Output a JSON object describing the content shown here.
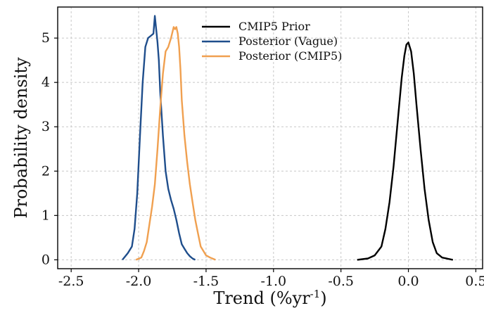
{
  "chart_data": {
    "type": "line",
    "xlabel": "Trend  (%yr",
    "xlabel_sup": "-1",
    "xlabel_close": ")",
    "ylabel": "Probability density",
    "xlim": [
      -2.6,
      0.55
    ],
    "ylim": [
      -0.2,
      5.7
    ],
    "xticks": [
      -2.5,
      -2.0,
      -1.5,
      -1.0,
      -0.5,
      0.0,
      0.5
    ],
    "xtick_labels": [
      "-2.5",
      "-2.0",
      "-1.5",
      "-1.0",
      "-0.5",
      "0.0",
      "0.5"
    ],
    "yticks": [
      0,
      1,
      2,
      3,
      4,
      5
    ],
    "ytick_labels": [
      "0",
      "1",
      "2",
      "3",
      "4",
      "5"
    ],
    "grid": true,
    "legend_position": "top-center",
    "series": [
      {
        "name": "CMIP5 Prior",
        "color": "#000000",
        "x": [
          -0.38,
          -0.3,
          -0.25,
          -0.2,
          -0.17,
          -0.14,
          -0.11,
          -0.08,
          -0.05,
          -0.03,
          -0.015,
          0.0,
          0.02,
          0.04,
          0.06,
          0.09,
          0.12,
          0.15,
          0.18,
          0.21,
          0.25,
          0.33
        ],
        "y": [
          0.0,
          0.03,
          0.1,
          0.3,
          0.7,
          1.3,
          2.1,
          3.1,
          4.1,
          4.6,
          4.85,
          4.9,
          4.7,
          4.2,
          3.5,
          2.5,
          1.6,
          0.9,
          0.4,
          0.15,
          0.05,
          0.0
        ]
      },
      {
        "name": "Posterior (Vague)",
        "color": "#1f4e8c",
        "x": [
          -2.12,
          -2.08,
          -2.05,
          -2.03,
          -2.01,
          -1.99,
          -1.97,
          -1.95,
          -1.93,
          -1.91,
          -1.89,
          -1.88,
          -1.87,
          -1.86,
          -1.85,
          -1.84,
          -1.82,
          -1.8,
          -1.78,
          -1.76,
          -1.74,
          -1.72,
          -1.7,
          -1.68,
          -1.66,
          -1.64,
          -1.62,
          -1.6,
          -1.58
        ],
        "y": [
          0.0,
          0.15,
          0.3,
          0.7,
          1.5,
          2.8,
          4.0,
          4.8,
          5.0,
          5.05,
          5.1,
          5.5,
          5.2,
          4.9,
          4.5,
          3.8,
          2.8,
          2.0,
          1.6,
          1.35,
          1.15,
          0.9,
          0.6,
          0.35,
          0.25,
          0.15,
          0.08,
          0.03,
          0.0
        ]
      },
      {
        "name": "Posterior (CMIP5)",
        "color": "#f0a050",
        "x": [
          -2.02,
          -1.98,
          -1.96,
          -1.94,
          -1.92,
          -1.9,
          -1.88,
          -1.86,
          -1.84,
          -1.82,
          -1.8,
          -1.78,
          -1.76,
          -1.74,
          -1.73,
          -1.72,
          -1.71,
          -1.7,
          -1.69,
          -1.68,
          -1.66,
          -1.64,
          -1.62,
          -1.6,
          -1.58,
          -1.56,
          -1.54,
          -1.52,
          -1.5,
          -1.47,
          -1.43
        ],
        "y": [
          0.0,
          0.05,
          0.2,
          0.4,
          0.8,
          1.2,
          1.7,
          2.5,
          3.4,
          4.2,
          4.7,
          4.8,
          5.0,
          5.25,
          5.2,
          5.25,
          5.1,
          4.8,
          4.3,
          3.6,
          2.8,
          2.2,
          1.7,
          1.3,
          0.9,
          0.6,
          0.3,
          0.2,
          0.1,
          0.05,
          0.0
        ]
      }
    ]
  }
}
